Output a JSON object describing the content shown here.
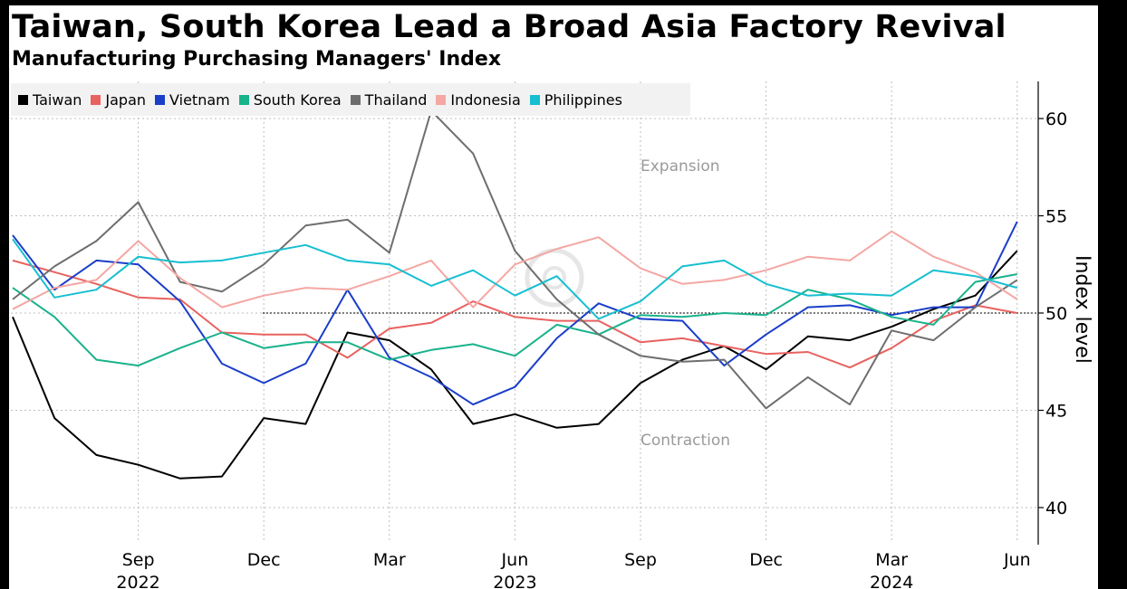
{
  "title": "Taiwan, South Korea Lead a Broad Asia Factory Revival",
  "subtitle": "Manufacturing Purchasing Managers' Index",
  "chart_data": {
    "type": "line",
    "title": "Taiwan, South Korea Lead a Broad Asia Factory Revival",
    "subtitle": "Manufacturing Purchasing Managers' Index",
    "ylabel": "Index level",
    "xlabel": "",
    "ylim": [
      38,
      62
    ],
    "yticks": [
      40,
      45,
      50,
      55,
      60
    ],
    "reference_line": 50,
    "legend_position": "top-left",
    "grid": true,
    "x": [
      "2022-06",
      "2022-07",
      "2022-08",
      "2022-09",
      "2022-10",
      "2022-11",
      "2022-12",
      "2023-01",
      "2023-02",
      "2023-03",
      "2023-04",
      "2023-05",
      "2023-06",
      "2023-07",
      "2023-08",
      "2023-09",
      "2023-10",
      "2023-11",
      "2023-12",
      "2024-01",
      "2024-02",
      "2024-03",
      "2024-04",
      "2024-05",
      "2024-06"
    ],
    "x_tick_labels": [
      {
        "x": "2022-09",
        "label": "Sep",
        "year": "2022"
      },
      {
        "x": "2022-12",
        "label": "Dec",
        "year": ""
      },
      {
        "x": "2023-03",
        "label": "Mar",
        "year": ""
      },
      {
        "x": "2023-06",
        "label": "Jun",
        "year": "2023"
      },
      {
        "x": "2023-09",
        "label": "Sep",
        "year": ""
      },
      {
        "x": "2023-12",
        "label": "Dec",
        "year": ""
      },
      {
        "x": "2024-03",
        "label": "Mar",
        "year": "2024"
      },
      {
        "x": "2024-06",
        "label": "Jun",
        "year": ""
      }
    ],
    "annotations": [
      {
        "text": "Expansion",
        "x": "2023-09",
        "y": 57.3
      },
      {
        "text": "Contraction",
        "x": "2023-09",
        "y": 43.2
      }
    ],
    "series": [
      {
        "name": "Taiwan",
        "color": "#000000",
        "values": [
          49.8,
          44.6,
          42.7,
          42.2,
          41.5,
          41.6,
          44.6,
          44.3,
          49.0,
          48.6,
          47.1,
          44.3,
          44.8,
          44.1,
          44.3,
          46.4,
          47.6,
          48.3,
          47.1,
          48.8,
          48.6,
          49.3,
          50.2,
          50.9,
          53.2
        ]
      },
      {
        "name": "Japan",
        "color": "#e8625f",
        "values": [
          52.7,
          52.1,
          51.5,
          50.8,
          50.7,
          49.0,
          48.9,
          48.9,
          47.7,
          49.2,
          49.5,
          50.6,
          49.8,
          49.6,
          49.6,
          48.5,
          48.7,
          48.3,
          47.9,
          48.0,
          47.2,
          48.2,
          49.6,
          50.4,
          50.0
        ]
      },
      {
        "name": "Vietnam",
        "color": "#1a3ec9",
        "values": [
          54.0,
          51.2,
          52.7,
          52.5,
          50.6,
          47.4,
          46.4,
          47.4,
          51.2,
          47.7,
          46.7,
          45.3,
          46.2,
          48.7,
          50.5,
          49.7,
          49.6,
          47.3,
          48.9,
          50.3,
          50.4,
          49.9,
          50.3,
          50.3,
          54.7
        ]
      },
      {
        "name": "South Korea",
        "color": "#19b28b",
        "values": [
          51.3,
          49.8,
          47.6,
          47.3,
          48.2,
          49.0,
          48.2,
          48.5,
          48.5,
          47.6,
          48.1,
          48.4,
          47.8,
          49.4,
          48.9,
          49.9,
          49.8,
          50.0,
          49.9,
          51.2,
          50.7,
          49.8,
          49.4,
          51.6,
          52.0
        ]
      },
      {
        "name": "Thailand",
        "color": "#6e6e6e",
        "values": [
          50.7,
          52.4,
          53.7,
          55.7,
          51.6,
          51.1,
          52.5,
          54.5,
          54.8,
          53.1,
          60.4,
          58.2,
          53.2,
          50.7,
          48.9,
          47.8,
          47.5,
          47.6,
          45.1,
          46.7,
          45.3,
          49.1,
          48.6,
          50.3,
          51.7
        ]
      },
      {
        "name": "Indonesia",
        "color": "#f4a7a3",
        "values": [
          50.2,
          51.3,
          51.7,
          53.7,
          51.8,
          50.3,
          50.9,
          51.3,
          51.2,
          51.9,
          52.7,
          50.3,
          52.5,
          53.3,
          53.9,
          52.3,
          51.5,
          51.7,
          52.2,
          52.9,
          52.7,
          54.2,
          52.9,
          52.1,
          50.7
        ]
      },
      {
        "name": "Philippines",
        "color": "#17bfd0",
        "values": [
          53.8,
          50.8,
          51.2,
          52.9,
          52.6,
          52.7,
          53.1,
          53.5,
          52.7,
          52.5,
          51.4,
          52.2,
          50.9,
          51.9,
          49.7,
          50.6,
          52.4,
          52.7,
          51.5,
          50.9,
          51.0,
          50.9,
          52.2,
          51.9,
          51.3
        ]
      }
    ]
  }
}
